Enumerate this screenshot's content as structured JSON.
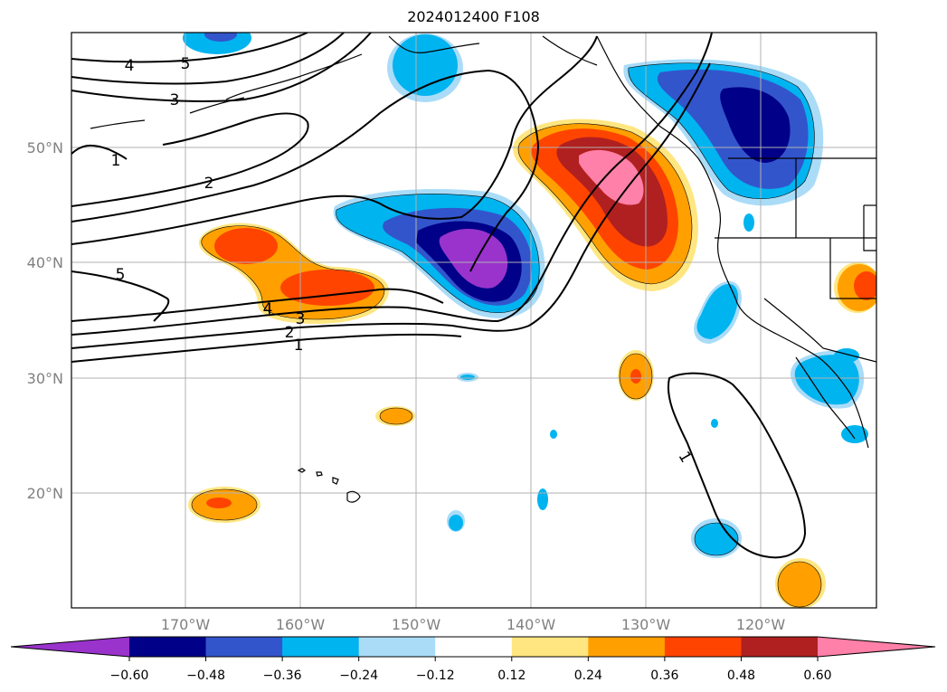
{
  "title": "2024012400 F108",
  "map": {
    "lat_labels": [
      "50°N",
      "40°N",
      "30°N",
      "20°N"
    ],
    "lon_labels": [
      "170°W",
      "160°W",
      "150°W",
      "140°W",
      "130°W",
      "120°W"
    ],
    "extent": {
      "lon_min": -180,
      "lon_max": -110,
      "lat_min": 10,
      "lat_max": 60
    },
    "grid": true
  },
  "colorbar": {
    "ticks": [
      "−0.60",
      "−0.48",
      "−0.36",
      "−0.24",
      "−0.12",
      "0.12",
      "0.24",
      "0.36",
      "0.48",
      "0.60"
    ],
    "colors": [
      "#9933cc",
      "#000088",
      "#3355cc",
      "#00b4f0",
      "#aadcf8",
      "#ffffff",
      "#ffe680",
      "#ffa000",
      "#ff4400",
      "#b02020",
      "#ff80a8"
    ],
    "extend": "both"
  },
  "contour_labels": [
    "4",
    "5",
    "3",
    "1",
    "2",
    "5",
    "4",
    "3",
    "2",
    "1",
    "1"
  ]
}
